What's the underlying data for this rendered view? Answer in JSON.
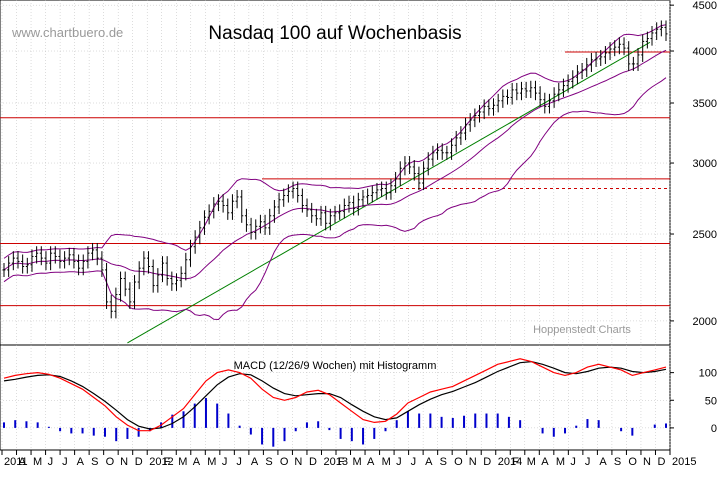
{
  "watermark": "www.chartbuero.de",
  "credit": "Hoppenstedt Charts",
  "colors": {
    "price_bar": "#000000",
    "bollinger": "#800080",
    "horizontal_lines": "#cc0000",
    "dashed_line": "#cc0000",
    "trendline": "#008000",
    "macd": "#000000",
    "signal": "#ff0000",
    "histogram": "#0000cc",
    "grid": "#bbbbbb"
  },
  "chart_data": [
    {
      "type": "candlestick",
      "title": "Nasdaq 100 auf Wochenbasis",
      "scale": "log",
      "ylim": [
        1880,
        4560
      ],
      "yticks": [
        2000,
        2500,
        3000,
        3500,
        4000,
        4500
      ],
      "ytick_labels": [
        "2000",
        "2500",
        "3000",
        "3500",
        "4000",
        "4500"
      ],
      "x_labels": [
        "2011",
        "A",
        "M",
        "J",
        "J",
        "A",
        "S",
        "O",
        "N",
        "D",
        "2012",
        "F",
        "M",
        "A",
        "M",
        "J",
        "J",
        "A",
        "S",
        "O",
        "N",
        "D",
        "2013",
        "F",
        "M",
        "A",
        "M",
        "J",
        "J",
        "A",
        "S",
        "O",
        "N",
        "D",
        "2014",
        "F",
        "M",
        "A",
        "M",
        "J",
        "J",
        "A",
        "S",
        "O",
        "N",
        "D",
        "2015"
      ],
      "grid": true,
      "close_series": [
        2280,
        2320,
        2350,
        2330,
        2300,
        2310,
        2360,
        2380,
        2350,
        2320,
        2380,
        2360,
        2330,
        2350,
        2370,
        2330,
        2290,
        2330,
        2380,
        2400,
        2350,
        2280,
        2100,
        2050,
        2140,
        2230,
        2170,
        2100,
        2210,
        2290,
        2350,
        2300,
        2190,
        2250,
        2320,
        2230,
        2200,
        2220,
        2260,
        2340,
        2420,
        2480,
        2540,
        2610,
        2650,
        2700,
        2720,
        2690,
        2640,
        2720,
        2750,
        2620,
        2560,
        2510,
        2550,
        2580,
        2540,
        2620,
        2680,
        2730,
        2760,
        2790,
        2810,
        2760,
        2690,
        2660,
        2620,
        2600,
        2640,
        2570,
        2620,
        2640,
        2650,
        2690,
        2710,
        2670,
        2730,
        2750,
        2760,
        2780,
        2800,
        2810,
        2780,
        2830,
        2880,
        2960,
        3000,
        2970,
        2920,
        2850,
        2960,
        3030,
        3080,
        3100,
        3080,
        3080,
        3140,
        3200,
        3240,
        3310,
        3350,
        3390,
        3420,
        3470,
        3450,
        3480,
        3520,
        3560,
        3550,
        3620,
        3590,
        3630,
        3610,
        3640,
        3590,
        3530,
        3470,
        3520,
        3580,
        3620,
        3660,
        3700,
        3740,
        3790,
        3810,
        3860,
        3910,
        3920,
        3940,
        3980,
        4020,
        4040,
        4070,
        4030,
        3870,
        3870,
        3960,
        4100,
        4130,
        4190,
        4230,
        4250,
        4180
      ],
      "horizontal_lines": [
        2080,
        2440,
        2880,
        3370,
        3990
      ],
      "dashed_line": 2810,
      "trendline": [
        [
          0.22,
          1890
        ],
        [
          0.97,
          4090
        ]
      ],
      "annotations": [
        "www.chartbuero.de",
        "Hoppenstedt Charts"
      ]
    },
    {
      "type": "line",
      "title": "MACD (12/26/9 Wochen) mit Histogramm",
      "ylim": [
        -40,
        150
      ],
      "yticks": [
        0,
        50,
        100
      ],
      "ytick_labels": [
        "0",
        "50",
        "100"
      ],
      "grid": true,
      "series": [
        {
          "values": [
            90,
            95,
            98,
            100,
            97,
            90,
            80,
            70,
            55,
            40,
            20,
            5,
            -5,
            -5,
            5,
            20,
            35,
            60,
            85,
            100,
            105,
            100,
            90,
            70,
            55,
            50,
            55,
            65,
            68,
            60,
            45,
            30,
            15,
            10,
            12,
            25,
            45,
            55,
            65,
            70,
            75,
            85,
            95,
            105,
            115,
            120,
            125,
            120,
            110,
            100,
            95,
            100,
            110,
            115,
            110,
            105,
            95,
            100,
            105,
            110
          ]
        },
        {
          "values": [
            85,
            88,
            92,
            95,
            96,
            93,
            85,
            75,
            62,
            48,
            32,
            15,
            3,
            -2,
            0,
            8,
            20,
            38,
            58,
            78,
            92,
            98,
            96,
            85,
            72,
            62,
            58,
            60,
            62,
            62,
            55,
            42,
            30,
            20,
            15,
            18,
            30,
            42,
            52,
            60,
            66,
            74,
            82,
            92,
            102,
            110,
            118,
            120,
            115,
            108,
            100,
            98,
            102,
            108,
            110,
            108,
            102,
            100,
            102,
            106
          ]
        }
      ],
      "histogram": [
        5,
        7,
        6,
        5,
        1,
        -3,
        -5,
        -5,
        -7,
        -8,
        -12,
        -10,
        -8,
        -3,
        5,
        12,
        15,
        22,
        27,
        22,
        13,
        2,
        -6,
        -15,
        -17,
        -12,
        -3,
        5,
        6,
        -2,
        -10,
        -12,
        -15,
        -10,
        -3,
        7,
        15,
        13,
        13,
        10,
        9,
        11,
        13,
        13,
        13,
        10,
        7,
        0,
        -5,
        -8,
        -5,
        2,
        8,
        7,
        0,
        -3,
        -7,
        0,
        3,
        4
      ]
    }
  ]
}
